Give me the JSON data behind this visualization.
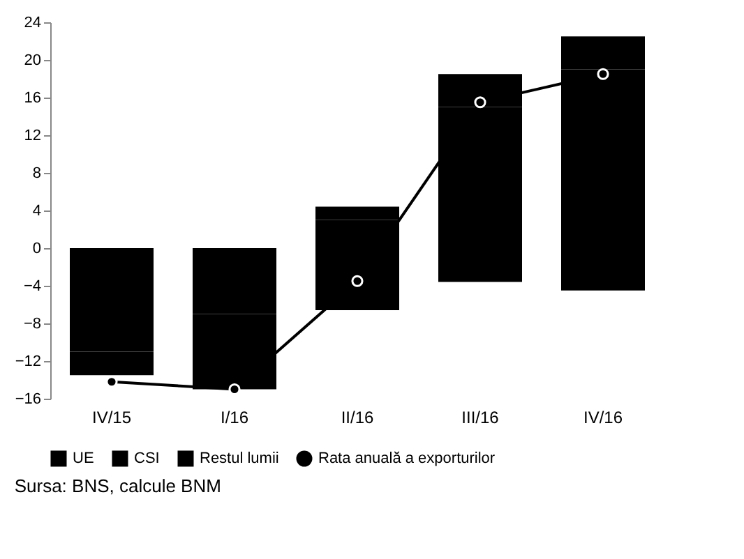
{
  "chart_data": {
    "type": "bar",
    "stacked": true,
    "categories": [
      "IV/15",
      "I/16",
      "II/16",
      "III/16",
      "IV/16"
    ],
    "series": [
      {
        "name": "UE",
        "color": "#000000",
        "values": [
          -6,
          -7,
          3,
          15,
          19
        ]
      },
      {
        "name": "CSI",
        "color": "#000000",
        "values": [
          -5,
          -5,
          -6.6,
          -3.6,
          -4.5
        ]
      },
      {
        "name": "Restul lumii",
        "color": "#000000",
        "values": [
          -2.5,
          -3,
          1.4,
          3.5,
          3.5
        ]
      },
      {
        "name": "Rata anuală a exporturilor",
        "type": "line",
        "color": "#000000",
        "values": [
          -14.2,
          -15,
          -3.5,
          15.5,
          18.5
        ]
      }
    ],
    "ylim": [
      -16,
      24
    ],
    "yticks": [
      -16,
      -12,
      -8,
      -4,
      0,
      4,
      8,
      12,
      16,
      20,
      24
    ],
    "grid": false,
    "legend": "bottom",
    "marker": "circle",
    "annotations": [
      "Sursa: BNS, calcule BNM"
    ]
  }
}
